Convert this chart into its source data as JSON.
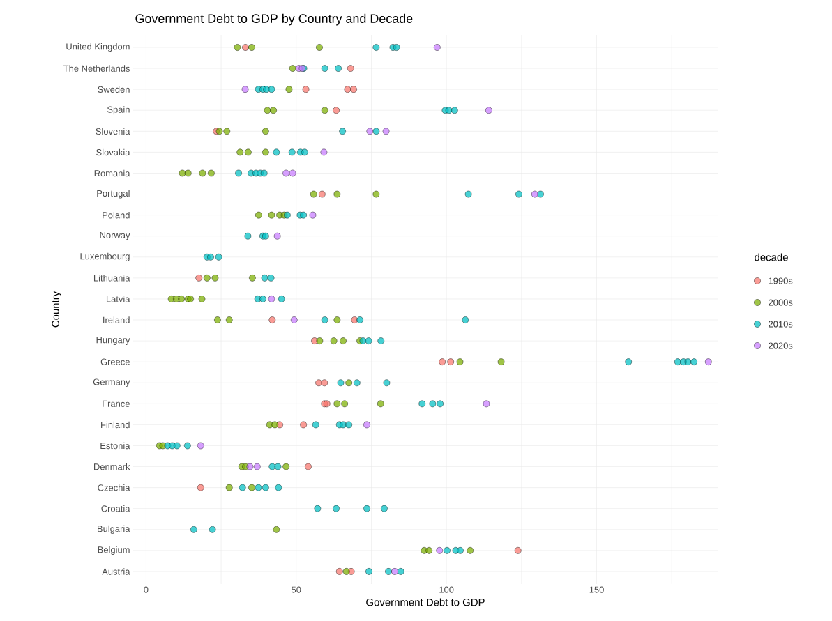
{
  "chart_data": {
    "type": "scatter",
    "orientation": "horizontal",
    "title": "Government Debt to GDP by Country and Decade",
    "xlabel": "Government Debt to GDP",
    "ylabel": "Country",
    "legend_title": "decade",
    "legend": "right",
    "grid": true,
    "marker": "circle",
    "categories": [
      "United Kingdom",
      "The Netherlands",
      "Sweden",
      "Spain",
      "Slovenia",
      "Slovakia",
      "Romania",
      "Portugal",
      "Poland",
      "Norway",
      "Luxembourg",
      "Lithuania",
      "Latvia",
      "Ireland",
      "Hungary",
      "Greece",
      "Germany",
      "France",
      "Finland",
      "Estonia",
      "Denmark",
      "Czechia",
      "Croatia",
      "Bulgaria",
      "Belgium",
      "Austria"
    ],
    "xlim": [
      -4.5,
      190.5
    ],
    "xticks": [
      0,
      {
        "value": 25,
        "label": null
      },
      50,
      {
        "value": 75,
        "label": null
      },
      100,
      {
        "value": 125,
        "label": null
      },
      150,
      {
        "value": 175,
        "label": null
      }
    ],
    "series": [
      {
        "name": "1990s",
        "color": "#f8766d",
        "x": [
          "United Kingdom",
          "The Netherlands",
          "Sweden",
          "Sweden",
          "Sweden",
          "Spain",
          "Slovenia",
          "Portugal",
          "Lithuania",
          "Ireland",
          "Ireland",
          "Hungary",
          "Greece",
          "Greece",
          "Germany",
          "Germany",
          "France",
          "France",
          "Finland",
          "Finland",
          "Denmark",
          "Czechia",
          "Belgium",
          "Austria",
          "Austria"
        ],
        "values": [
          33.1,
          68.1,
          53.2,
          67.1,
          69.1,
          63.3,
          23.4,
          58.6,
          17.6,
          42.0,
          69.4,
          56.1,
          98.6,
          101.4,
          57.5,
          59.4,
          59.4,
          60.2,
          44.5,
          52.4,
          54.0,
          18.2,
          123.8,
          64.4,
          68.3
        ]
      },
      {
        "name": "2000s",
        "color": "#7cae00",
        "x": [
          "United Kingdom",
          "United Kingdom",
          "United Kingdom",
          "The Netherlands",
          "Sweden",
          "Spain",
          "Spain",
          "Spain",
          "Slovenia",
          "Slovenia",
          "Slovenia",
          "Slovakia",
          "Slovakia",
          "Slovakia",
          "Romania",
          "Romania",
          "Romania",
          "Romania",
          "Portugal",
          "Portugal",
          "Portugal",
          "Poland",
          "Poland",
          "Poland",
          "Poland",
          "Lithuania",
          "Lithuania",
          "Lithuania",
          "Latvia",
          "Latvia",
          "Latvia",
          "Latvia",
          "Latvia",
          "Latvia",
          "Ireland",
          "Ireland",
          "Ireland",
          "Hungary",
          "Hungary",
          "Hungary",
          "Hungary",
          "Greece",
          "Greece",
          "Germany",
          "France",
          "France",
          "France",
          "Finland",
          "Finland",
          "Estonia",
          "Estonia",
          "Denmark",
          "Denmark",
          "Denmark",
          "Czechia",
          "Czechia",
          "Bulgaria",
          "Belgium",
          "Belgium",
          "Belgium",
          "Austria"
        ],
        "values": [
          30.4,
          35.2,
          57.7,
          48.8,
          47.6,
          40.4,
          42.4,
          59.5,
          24.4,
          26.9,
          39.8,
          31.3,
          34.0,
          39.8,
          12.1,
          14.0,
          18.8,
          21.7,
          55.8,
          63.6,
          76.6,
          37.5,
          41.8,
          44.5,
          46.0,
          20.3,
          23.0,
          35.4,
          8.4,
          10.1,
          11.8,
          14.0,
          14.8,
          18.6,
          23.8,
          27.7,
          63.6,
          57.8,
          62.5,
          65.6,
          71.2,
          104.5,
          118.2,
          67.5,
          63.6,
          66.1,
          78.1,
          41.2,
          42.9,
          4.5,
          5.6,
          31.9,
          33.1,
          46.6,
          27.7,
          35.2,
          43.4,
          92.6,
          94.2,
          107.9,
          66.7
        ]
      },
      {
        "name": "2010s",
        "color": "#00bfc4",
        "x": [
          "United Kingdom",
          "United Kingdom",
          "United Kingdom",
          "The Netherlands",
          "The Netherlands",
          "The Netherlands",
          "Sweden",
          "Sweden",
          "Sweden",
          "Sweden",
          "Spain",
          "Spain",
          "Spain",
          "Slovenia",
          "Slovenia",
          "Slovakia",
          "Slovakia",
          "Slovakia",
          "Slovakia",
          "Romania",
          "Romania",
          "Romania",
          "Romania",
          "Romania",
          "Portugal",
          "Portugal",
          "Portugal",
          "Poland",
          "Poland",
          "Poland",
          "Norway",
          "Norway",
          "Norway",
          "Luxembourg",
          "Luxembourg",
          "Luxembourg",
          "Lithuania",
          "Lithuania",
          "Latvia",
          "Latvia",
          "Latvia",
          "Ireland",
          "Ireland",
          "Ireland",
          "Hungary",
          "Hungary",
          "Hungary",
          "Greece",
          "Greece",
          "Greece",
          "Greece",
          "Greece",
          "Germany",
          "Germany",
          "Germany",
          "France",
          "France",
          "France",
          "Finland",
          "Finland",
          "Finland",
          "Finland",
          "Estonia",
          "Estonia",
          "Estonia",
          "Estonia",
          "Denmark",
          "Denmark",
          "Czechia",
          "Czechia",
          "Czechia",
          "Czechia",
          "Croatia",
          "Croatia",
          "Croatia",
          "Croatia",
          "Bulgaria",
          "Bulgaria",
          "Belgium",
          "Belgium",
          "Belgium",
          "Austria",
          "Austria",
          "Austria"
        ],
        "values": [
          76.6,
          82.2,
          83.4,
          52.5,
          59.5,
          64.0,
          37.4,
          38.9,
          40.1,
          41.8,
          99.6,
          100.8,
          102.7,
          65.4,
          76.6,
          43.4,
          48.6,
          51.4,
          52.8,
          30.8,
          35.0,
          36.6,
          38.0,
          39.3,
          107.3,
          124.1,
          131.3,
          47.0,
          51.3,
          52.4,
          33.9,
          38.9,
          39.8,
          20.3,
          21.5,
          24.2,
          39.5,
          41.6,
          37.2,
          38.9,
          45.1,
          59.5,
          71.2,
          106.3,
          72.2,
          74.1,
          78.2,
          160.6,
          177.0,
          178.9,
          180.4,
          182.4,
          64.8,
          70.2,
          80.1,
          91.9,
          95.4,
          97.9,
          56.5,
          64.4,
          65.6,
          67.5,
          7.2,
          8.7,
          10.3,
          13.8,
          42.0,
          43.9,
          32.1,
          37.4,
          39.8,
          44.1,
          57.1,
          63.3,
          73.5,
          79.3,
          15.9,
          22.1,
          100.2,
          103.1,
          104.6,
          74.2,
          80.7,
          84.8
        ]
      },
      {
        "name": "2020s",
        "color": "#c77cff",
        "x": [
          "United Kingdom",
          "The Netherlands",
          "The Netherlands",
          "Sweden",
          "Spain",
          "Slovenia",
          "Slovenia",
          "Slovakia",
          "Romania",
          "Romania",
          "Portugal",
          "Poland",
          "Norway",
          "Latvia",
          "Latvia",
          "Ireland",
          "Greece",
          "France",
          "Finland",
          "Estonia",
          "Denmark",
          "Denmark",
          "Belgium",
          "Austria"
        ],
        "values": [
          96.9,
          50.9,
          52.0,
          33.0,
          114.1,
          74.5,
          79.9,
          59.2,
          46.6,
          48.8,
          129.4,
          55.5,
          43.7,
          null,
          41.8,
          49.3,
          187.2,
          113.3,
          73.5,
          18.2,
          34.6,
          37.0,
          97.7,
          82.8
        ]
      }
    ]
  }
}
